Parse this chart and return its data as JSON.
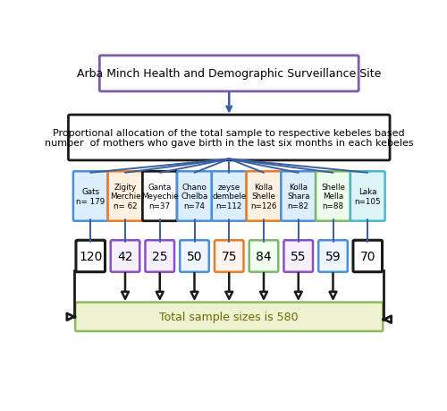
{
  "title_box": "Arba Minch Health and Demographic Surveillance Site",
  "middle_box": "Proportional allocation of the total sample to respective kebeles based\nnumber  of mothers who gave birth in the last six months in each kebeles",
  "bottom_box": "Total sample sizes is 580",
  "kebeles": [
    {
      "name": "Gats\nn= 179",
      "sample": "120",
      "top_color": "#4a90d9",
      "bot_color": "#1a1a1a"
    },
    {
      "name": "Zigity\nMerchie\nn= 62",
      "sample": "42",
      "top_color": "#e87c2a",
      "bot_color": "#8a4fc8"
    },
    {
      "name": "Ganta\nMeyechie\nn=37",
      "sample": "25",
      "top_color": "#1a1a1a",
      "bot_color": "#8a4fc8"
    },
    {
      "name": "Chano\nChelba\nn=74",
      "sample": "50",
      "top_color": "#4a90d9",
      "bot_color": "#4a90d9"
    },
    {
      "name": "zeyse\ndembele\nn=112",
      "sample": "75",
      "top_color": "#4a90d9",
      "bot_color": "#e87c2a"
    },
    {
      "name": "Kolla\nShelle\nn=126",
      "sample": "84",
      "top_color": "#e87c2a",
      "bot_color": "#7db86a"
    },
    {
      "name": "Kolla\nShara\nn=82",
      "sample": "55",
      "top_color": "#4a90d9",
      "bot_color": "#8a4fc8"
    },
    {
      "name": "Shelle\nMella\nn=88",
      "sample": "59",
      "top_color": "#7db86a",
      "bot_color": "#4a90d9"
    },
    {
      "name": "Laka\nn=105",
      "sample": "70",
      "top_color": "#4ab8c8",
      "bot_color": "#1a1a1a"
    }
  ],
  "title_border_color": "#7b5ea7",
  "middle_border_color": "#1a1a1a",
  "bottom_bg_color": "#eef2d0",
  "bottom_border_color": "#8db860",
  "bg_color": "#ffffff",
  "fan_color": "#3a5fa0",
  "arrow_color": "#1a1a1a"
}
